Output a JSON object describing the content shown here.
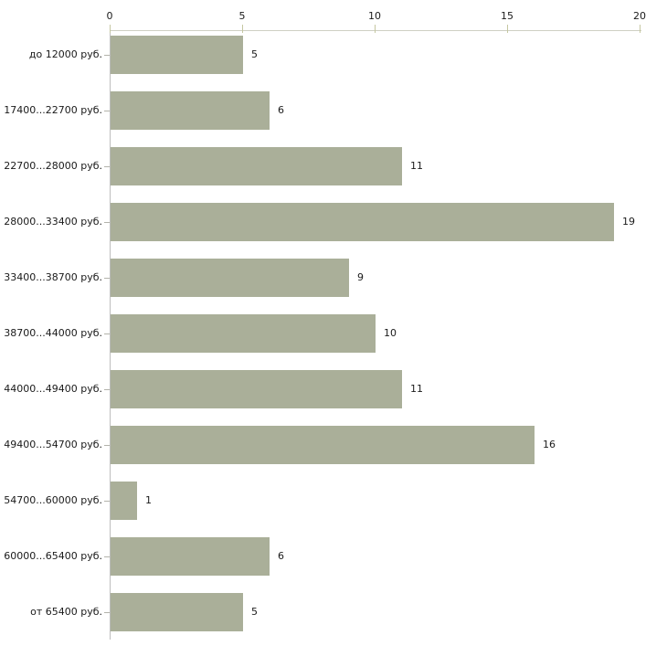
{
  "chart_data": {
    "type": "bar",
    "orientation": "horizontal",
    "title": "",
    "xlabel": "",
    "ylabel": "",
    "categories": [
      "до 12000 руб.",
      "17400...22700 руб.",
      "22700...28000 руб.",
      "28000...33400 руб.",
      "33400...38700 руб.",
      "38700...44000 руб.",
      "44000...49400 руб.",
      "49400...54700 руб.",
      "54700...60000 руб.",
      "60000...65400 руб.",
      "от 65400 руб."
    ],
    "values": [
      5,
      6,
      11,
      19,
      9,
      10,
      11,
      16,
      1,
      6,
      5
    ],
    "xticks": [
      "0",
      "5",
      "10",
      "15",
      "20"
    ],
    "xlim": [
      0,
      20
    ],
    "grid": false,
    "legend": "none",
    "value_labels_position": "right-of-bar",
    "axis_position": "top",
    "bar_color": "#aaaf99",
    "axis_tick_color": "#c5c7a1",
    "x_axis_line_color": "#cfd0c3",
    "y_axis_line_color": "#bdbdbd",
    "category_tick_color": "#b3b3ab",
    "text_color": "#1a1a1a"
  }
}
